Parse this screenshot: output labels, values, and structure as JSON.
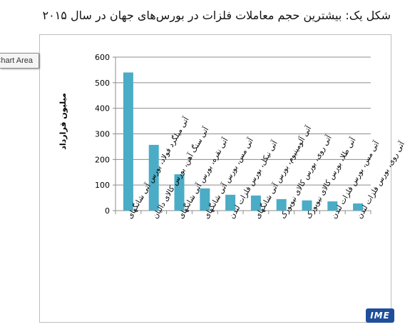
{
  "title": "شکل یک: بیشترین حجم معاملات فلزات در بورس‌های جهان در سال ۲۰۱۵",
  "tooltip": "Chart Area",
  "logo": "IME",
  "colors": {
    "bar": "#4bacc6",
    "grid": "#8c8c8c",
    "axis": "#8c8c8c",
    "text": "#000000"
  },
  "chart_data": {
    "type": "bar",
    "ylabel": "میلیون قرارداد",
    "xlabel": "",
    "ylim": [
      0,
      600
    ],
    "yticks": [
      0,
      100,
      200,
      300,
      400,
      500,
      600
    ],
    "grid": true,
    "legend": "none",
    "categories": [
      "آتی میلگرد فولاد، بورس آتی شانگهای",
      "آتی سنگ آهن، بورس کالای دالیان",
      "آتی نقره، بورس آتی شانگهای",
      "آتی مس، بورس آتی شانگهای",
      "آتی نیکل، بورس فلزات لندن",
      "آتی آلومینیوم، بورس آتی شانگهای",
      "آتی روی، بورس کالای نیویورک",
      "آتی طلا، بورس کالای نیویورک",
      "آتی مس، بورس فلزات لندن",
      "آتی روی، بورس فلزات لندن"
    ],
    "values": [
      540,
      257,
      142,
      87,
      62,
      59,
      45,
      40,
      36,
      28
    ]
  }
}
